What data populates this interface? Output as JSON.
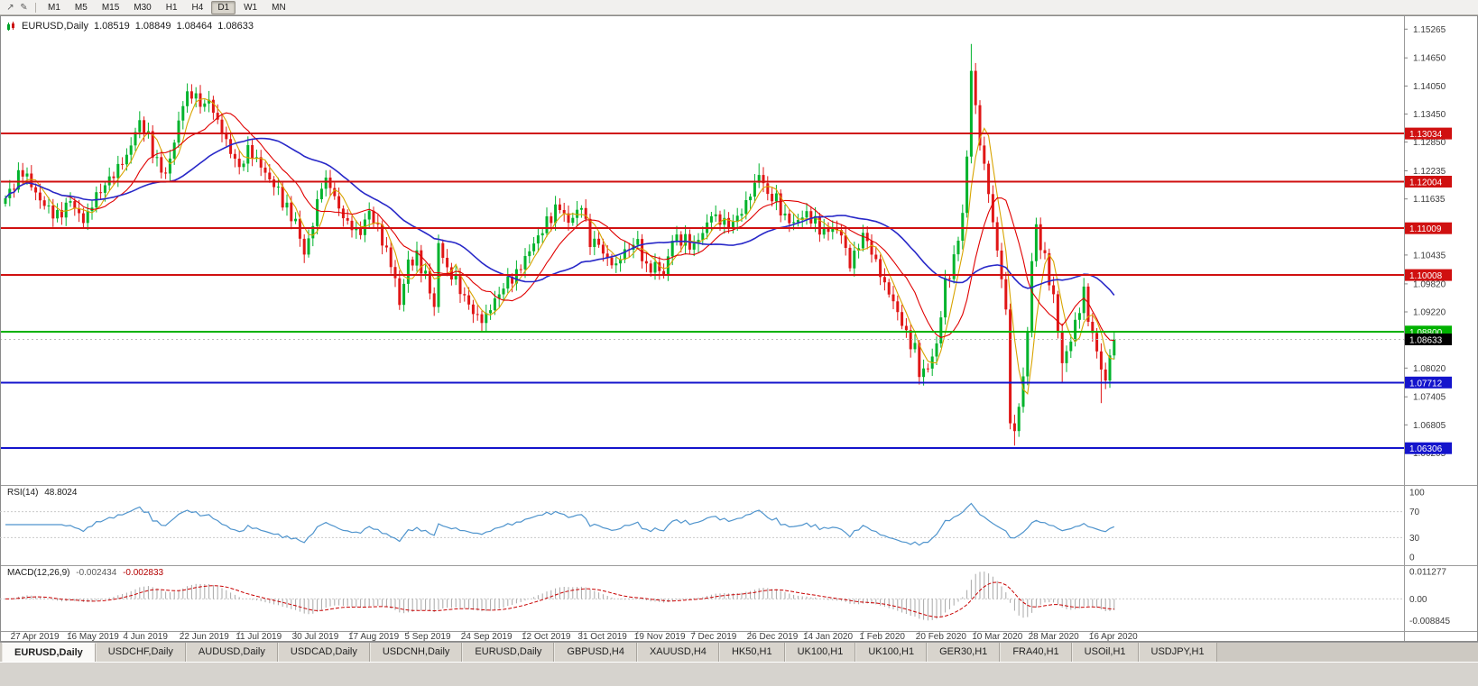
{
  "window": {
    "toolbar_icons": [
      {
        "name": "cursor-arrow-icon",
        "glyph": "↗"
      },
      {
        "name": "trendline-pencil-icon",
        "glyph": "✎"
      }
    ],
    "timeframes": [
      {
        "label": "M1"
      },
      {
        "label": "M5"
      },
      {
        "label": "M15"
      },
      {
        "label": "M30"
      },
      {
        "label": "H1"
      },
      {
        "label": "H4"
      },
      {
        "label": "D1",
        "active": true
      },
      {
        "label": "W1"
      },
      {
        "label": "MN"
      }
    ],
    "tabs": [
      {
        "label": "EURUSD,Daily",
        "active": true
      },
      {
        "label": "USDCHF,Daily"
      },
      {
        "label": "AUDUSD,Daily"
      },
      {
        "label": "USDCAD,Daily"
      },
      {
        "label": "USDCNH,Daily"
      },
      {
        "label": "EURUSD,Daily"
      },
      {
        "label": "GBPUSD,H4"
      },
      {
        "label": "XAUUSD,H4"
      },
      {
        "label": "HK50,H1"
      },
      {
        "label": "UK100,H1"
      },
      {
        "label": "UK100,H1"
      },
      {
        "label": "GER30,H1"
      },
      {
        "label": "FRA40,H1"
      },
      {
        "label": "USOil,H1"
      },
      {
        "label": "USDJPY,H1"
      }
    ]
  },
  "chart": {
    "symbol_title": "EURUSD,Daily",
    "ohlc": {
      "open": "1.08519",
      "high": "1.08849",
      "low": "1.08464",
      "close": "1.08633"
    }
  },
  "rsi_panel": {
    "name": "RSI(14)",
    "value": "48.8024"
  },
  "macd_panel": {
    "name": "MACD(12,26,9)",
    "value": "-0.002434",
    "signal": "-0.002833"
  },
  "chart_data": {
    "type": "candlestick",
    "symbol": "EURUSD",
    "period": "Daily",
    "last_quote": {
      "open": 1.08519,
      "high": 1.08849,
      "low": 1.08464,
      "close": 1.08633
    },
    "ylim": [
      1.0552,
      1.1556
    ],
    "y_ticks": [
      "1.15265",
      "1.14650",
      "1.14050",
      "1.13450",
      "1.12850",
      "1.12235",
      "1.11635",
      "1.11035",
      "1.10435",
      "1.09820",
      "1.09220",
      "1.08620",
      "1.08020",
      "1.07405",
      "1.06805",
      "1.06205"
    ],
    "x_labels": [
      {
        "text": "27 Apr 2019",
        "i": 2
      },
      {
        "text": "16 May 2019",
        "i": 15
      },
      {
        "text": "4 Jun 2019",
        "i": 28
      },
      {
        "text": "22 Jun 2019",
        "i": 41
      },
      {
        "text": "11 Jul 2019",
        "i": 54
      },
      {
        "text": "30 Jul 2019",
        "i": 67
      },
      {
        "text": "17 Aug 2019",
        "i": 80
      },
      {
        "text": "5 Sep 2019",
        "i": 93
      },
      {
        "text": "24 Sep 2019",
        "i": 106
      },
      {
        "text": "12 Oct 2019",
        "i": 120
      },
      {
        "text": "31 Oct 2019",
        "i": 133
      },
      {
        "text": "19 Nov 2019",
        "i": 146
      },
      {
        "text": "7 Dec 2019",
        "i": 159
      },
      {
        "text": "26 Dec 2019",
        "i": 172
      },
      {
        "text": "14 Jan 2020",
        "i": 185
      },
      {
        "text": "1 Feb 2020",
        "i": 198
      },
      {
        "text": "20 Feb 2020",
        "i": 211
      },
      {
        "text": "10 Mar 2020",
        "i": 224
      },
      {
        "text": "28 Mar 2020",
        "i": 237
      },
      {
        "text": "16 Apr 2020",
        "i": 251
      }
    ],
    "candle_count": 257,
    "close_path": [
      [
        0,
        1.1165
      ],
      [
        4,
        1.1225
      ],
      [
        8,
        1.116
      ],
      [
        12,
        1.1125
      ],
      [
        15,
        1.116
      ],
      [
        18,
        1.1115
      ],
      [
        21,
        1.117
      ],
      [
        24,
        1.1205
      ],
      [
        28,
        1.1255
      ],
      [
        31,
        1.133
      ],
      [
        33,
        1.1295
      ],
      [
        35,
        1.124
      ],
      [
        37,
        1.1215
      ],
      [
        39,
        1.1285
      ],
      [
        41,
        1.137
      ],
      [
        43,
        1.1392
      ],
      [
        45,
        1.1365
      ],
      [
        47,
        1.1372
      ],
      [
        49,
        1.133
      ],
      [
        51,
        1.1285
      ],
      [
        54,
        1.1228
      ],
      [
        56,
        1.1268
      ],
      [
        58,
        1.1248
      ],
      [
        60,
        1.1218
      ],
      [
        63,
        1.118
      ],
      [
        65,
        1.114
      ],
      [
        67,
        1.1115
      ],
      [
        69,
        1.1045
      ],
      [
        71,
        1.111
      ],
      [
        73,
        1.1198
      ],
      [
        75,
        1.1195
      ],
      [
        77,
        1.114
      ],
      [
        80,
        1.11
      ],
      [
        82,
        1.1092
      ],
      [
        84,
        1.1138
      ],
      [
        86,
        1.1098
      ],
      [
        88,
        1.1052
      ],
      [
        90,
        1.0992
      ],
      [
        91,
        1.0938
      ],
      [
        93,
        1.1028
      ],
      [
        95,
        1.1038
      ],
      [
        97,
        1.1
      ],
      [
        99,
        1.0932
      ],
      [
        100,
        1.1068
      ],
      [
        102,
        1.1012
      ],
      [
        104,
        1.099
      ],
      [
        106,
        1.0952
      ],
      [
        108,
        1.0922
      ],
      [
        110,
        1.0902
      ],
      [
        112,
        1.093
      ],
      [
        114,
        1.0962
      ],
      [
        116,
        1.0988
      ],
      [
        118,
        1.1002
      ],
      [
        120,
        1.1038
      ],
      [
        122,
        1.1068
      ],
      [
        124,
        1.1098
      ],
      [
        126,
        1.1128
      ],
      [
        128,
        1.1148
      ],
      [
        130,
        1.1112
      ],
      [
        133,
        1.115
      ],
      [
        135,
        1.1072
      ],
      [
        137,
        1.1068
      ],
      [
        139,
        1.1032
      ],
      [
        141,
        1.1022
      ],
      [
        143,
        1.1052
      ],
      [
        146,
        1.1072
      ],
      [
        148,
        1.1012
      ],
      [
        150,
        1.1022
      ],
      [
        152,
        1.1002
      ],
      [
        154,
        1.1078
      ],
      [
        156,
        1.1078
      ],
      [
        159,
        1.1062
      ],
      [
        161,
        1.1092
      ],
      [
        163,
        1.113
      ],
      [
        165,
        1.1118
      ],
      [
        167,
        1.1108
      ],
      [
        169,
        1.1122
      ],
      [
        172,
        1.1172
      ],
      [
        174,
        1.1218
      ],
      [
        176,
        1.1172
      ],
      [
        178,
        1.1162
      ],
      [
        180,
        1.1122
      ],
      [
        182,
        1.1112
      ],
      [
        185,
        1.1132
      ],
      [
        187,
        1.1112
      ],
      [
        189,
        1.1092
      ],
      [
        191,
        1.1102
      ],
      [
        193,
        1.1088
      ],
      [
        195,
        1.1022
      ],
      [
        198,
        1.1088
      ],
      [
        200,
        1.1052
      ],
      [
        202,
        1.1002
      ],
      [
        204,
        1.0962
      ],
      [
        206,
        1.0922
      ],
      [
        208,
        1.0872
      ],
      [
        210,
        1.0842
      ],
      [
        211,
        1.0792
      ],
      [
        213,
        1.0802
      ],
      [
        215,
        1.0852
      ],
      [
        217,
        1.0982
      ],
      [
        219,
        1.1032
      ],
      [
        221,
        1.1132
      ],
      [
        222,
        1.1252
      ],
      [
        223,
        1.144
      ],
      [
        225,
        1.1282
      ],
      [
        227,
        1.1182
      ],
      [
        228,
        1.1108
      ],
      [
        230,
        1.0998
      ],
      [
        231,
        1.0918
      ],
      [
        232,
        1.0692
      ],
      [
        233,
        1.0662
      ],
      [
        235,
        1.0782
      ],
      [
        236,
        1.0882
      ],
      [
        237,
        1.1032
      ],
      [
        238,
        1.1102
      ],
      [
        240,
        1.1032
      ],
      [
        242,
        1.0952
      ],
      [
        244,
        1.0812
      ],
      [
        246,
        1.0862
      ],
      [
        248,
        1.0932
      ],
      [
        249,
        1.0962
      ],
      [
        250,
        1.0912
      ],
      [
        251,
        1.0872
      ],
      [
        253,
        1.0802
      ],
      [
        254,
        1.0772
      ],
      [
        255,
        1.0832
      ],
      [
        256,
        1.08633
      ]
    ],
    "extreme_wicks": [
      [
        43,
        "h",
        1.14005
      ],
      [
        69,
        "l",
        1.10265
      ],
      [
        91,
        "l",
        1.09262
      ],
      [
        100,
        "h",
        1.10744
      ],
      [
        110,
        "l",
        1.0879
      ],
      [
        174,
        "h",
        1.12393
      ],
      [
        211,
        "l",
        1.07781
      ],
      [
        223,
        "h",
        1.14947
      ],
      [
        233,
        "l",
        1.06362
      ],
      [
        244,
        "l",
        1.07727
      ],
      [
        253,
        "l",
        1.0727
      ]
    ],
    "horizontal_lines": [
      {
        "price": 1.13034,
        "label": "1.13034",
        "color": "#D01010",
        "kind": "resistance"
      },
      {
        "price": 1.12004,
        "label": "1.12004",
        "color": "#D01010",
        "kind": "resistance"
      },
      {
        "price": 1.11009,
        "label": "1.11009",
        "color": "#D01010",
        "kind": "resistance"
      },
      {
        "price": 1.10008,
        "label": "1.10008",
        "color": "#D01010",
        "kind": "resistance"
      },
      {
        "price": 1.088,
        "label": "1.08800",
        "color": "#00B100",
        "kind": "support"
      },
      {
        "price": 1.07712,
        "label": "1.07712",
        "color": "#1414CC",
        "kind": "support"
      },
      {
        "price": 1.06306,
        "label": "1.06306",
        "color": "#1414CC",
        "kind": "support"
      }
    ],
    "current_price": {
      "value": 1.08633,
      "label": "1.08633",
      "box_color": "#000000"
    },
    "candle_colors": {
      "up": "#00B32C",
      "down": "#E01616"
    },
    "moving_averages": [
      {
        "name": "fast",
        "period": 5,
        "color": "#D8A400"
      },
      {
        "name": "medium",
        "period": 13,
        "color": "#E00000"
      },
      {
        "name": "slow",
        "period": 34,
        "color": "#2828C8"
      }
    ],
    "rsi": {
      "period": 14,
      "last": 48.8024,
      "levels": [
        100,
        70,
        30,
        0
      ],
      "ylim": [
        0,
        100
      ],
      "line_color": "#4F94CD"
    },
    "macd": {
      "fast": 12,
      "slow": 26,
      "signal_period": 9,
      "last_macd": -0.002434,
      "last_signal": -0.002833,
      "y_ticks": [
        "0.011277",
        "0.00",
        "-0.008845"
      ],
      "ylim": [
        -0.0132,
        0.0139
      ],
      "histogram_color": "#A8A8A8",
      "signal_color": "#C80000"
    }
  }
}
